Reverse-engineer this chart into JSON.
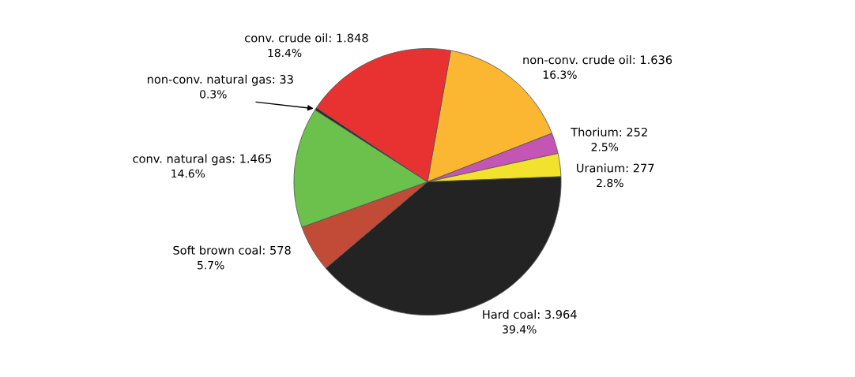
{
  "chart_data": {
    "type": "pie",
    "categories": [
      "non-conv. crude oil",
      "Thorium",
      "Uranium",
      "Hard coal",
      "Soft brown coal",
      "conv. natural gas",
      "non-conv. natural gas",
      "conv. crude oil"
    ],
    "values": [
      16.3,
      2.5,
      2.8,
      39.4,
      5.7,
      14.6,
      0.3,
      18.4
    ],
    "colors": [
      "#fbb632",
      "#c455b5",
      "#f2e22e",
      "#232323",
      "#c24b37",
      "#6cc04c",
      "#2a2a2a",
      "#e83232"
    ],
    "value_labels": [
      "1.636\n16.3%",
      "252\n2.5%",
      "277\n2.8%",
      "3.964\n39.4%",
      "578\n5.7%",
      "1.465\n14.6%",
      "33\n0.3%",
      "1.848\n18.4%"
    ]
  }
}
